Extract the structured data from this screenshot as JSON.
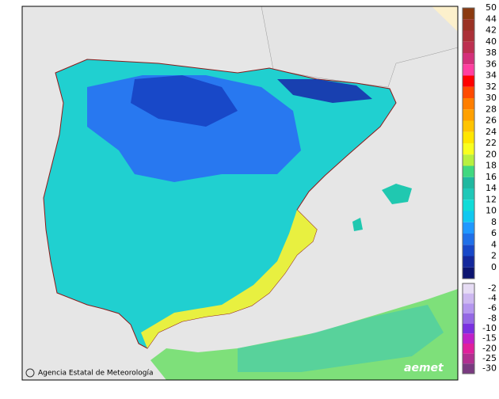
{
  "legend": {
    "entries": [
      {
        "label": 50,
        "color": "#8b3a10"
      },
      {
        "label": 44,
        "color": "#9a3224"
      },
      {
        "label": 42,
        "color": "#ab3038"
      },
      {
        "label": 40,
        "color": "#bd3050"
      },
      {
        "label": 38,
        "color": "#d4307a"
      },
      {
        "label": 36,
        "color": "#ff3fa0"
      },
      {
        "label": 34,
        "color": "#ff0000"
      },
      {
        "label": 32,
        "color": "#ff4a00"
      },
      {
        "label": 30,
        "color": "#ff7e00"
      },
      {
        "label": 28,
        "color": "#ffa000"
      },
      {
        "label": 26,
        "color": "#ffc400"
      },
      {
        "label": 24,
        "color": "#ffe600"
      },
      {
        "label": 22,
        "color": "#f8ff20"
      },
      {
        "label": 20,
        "color": "#b8f040"
      },
      {
        "label": 18,
        "color": "#40d880"
      },
      {
        "label": 16,
        "color": "#20b8a0"
      },
      {
        "label": 14,
        "color": "#20c8b8"
      },
      {
        "label": 12,
        "color": "#10dcd8"
      },
      {
        "label": 10,
        "color": "#10c8f0"
      },
      {
        "label": 8,
        "color": "#2098ff"
      },
      {
        "label": 6,
        "color": "#2070e8"
      },
      {
        "label": 4,
        "color": "#1848c8"
      },
      {
        "label": 2,
        "color": "#14289c"
      },
      {
        "label": 0,
        "color": "#0c1470"
      },
      {
        "label": -2,
        "color": "#e6dcf4"
      },
      {
        "label": -4,
        "color": "#cdb8f0"
      },
      {
        "label": -6,
        "color": "#b496ee"
      },
      {
        "label": -8,
        "color": "#9468e4"
      },
      {
        "label": -10,
        "color": "#7a30e0"
      },
      {
        "label": -15,
        "color": "#c020c8"
      },
      {
        "label": -20,
        "color": "#e0209c"
      },
      {
        "label": -25,
        "color": "#b03090"
      },
      {
        "label": -30,
        "color": "#7a3a80"
      }
    ]
  },
  "footer": {
    "agency": "Agencia Estatal de Meteorología",
    "logo": "aemet"
  }
}
